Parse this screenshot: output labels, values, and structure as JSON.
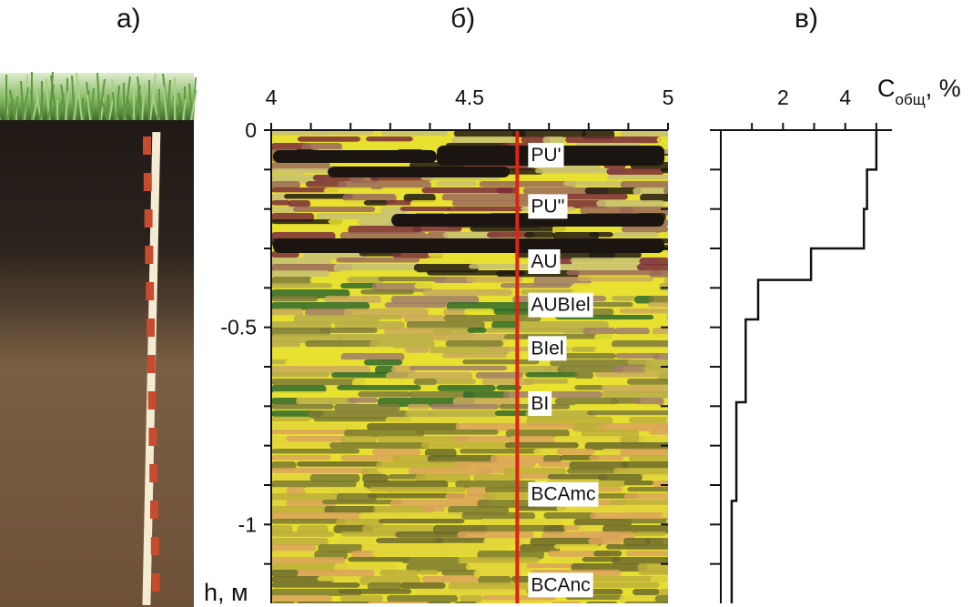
{
  "panel_labels": {
    "a": "а)",
    "b": "б)",
    "c": "в)"
  },
  "depth_axis_label": "h, м",
  "chart_data": [
    {
      "type": "heatmap",
      "panel": "б)",
      "x_ticks": [
        "4",
        "4.5",
        "5"
      ],
      "x_range": [
        4,
        5
      ],
      "y_ticks": [
        "0",
        "-0.5",
        "-1"
      ],
      "y_range": [
        0,
        -1.2
      ],
      "marker_line_x": 4.62,
      "horizons": [
        {
          "name": "PU'",
          "depth": -0.06
        },
        {
          "name": "PU''",
          "depth": -0.19
        },
        {
          "name": "AU",
          "depth": -0.33
        },
        {
          "name": "AUBIel",
          "depth": -0.44
        },
        {
          "name": "BIel",
          "depth": -0.55
        },
        {
          "name": "BI",
          "depth": -0.69
        },
        {
          "name": "BCAmc",
          "depth": -0.92
        },
        {
          "name": "BCAnc",
          "depth": -1.15
        }
      ],
      "colors": {
        "marker_line": "#e02414",
        "field": "#e8e030"
      }
    },
    {
      "type": "line",
      "panel": "в)",
      "x_label_main": "С",
      "x_label_sub": "общ",
      "x_label_unit": ", %",
      "x_ticks": [
        "2",
        "4"
      ],
      "x_range": [
        0,
        5.5
      ],
      "y_range": [
        0,
        -1.2
      ],
      "steps": [
        {
          "from": 0,
          "to": -0.1,
          "c": 5.0
        },
        {
          "from": -0.1,
          "to": -0.2,
          "c": 4.7
        },
        {
          "from": -0.2,
          "to": -0.3,
          "c": 4.6
        },
        {
          "from": -0.3,
          "to": -0.38,
          "c": 2.9
        },
        {
          "from": -0.38,
          "to": -0.48,
          "c": 1.2
        },
        {
          "from": -0.48,
          "to": -0.69,
          "c": 0.8
        },
        {
          "from": -0.69,
          "to": -0.94,
          "c": 0.5
        },
        {
          "from": -0.94,
          "to": -1.2,
          "c": 0.35
        }
      ]
    }
  ]
}
